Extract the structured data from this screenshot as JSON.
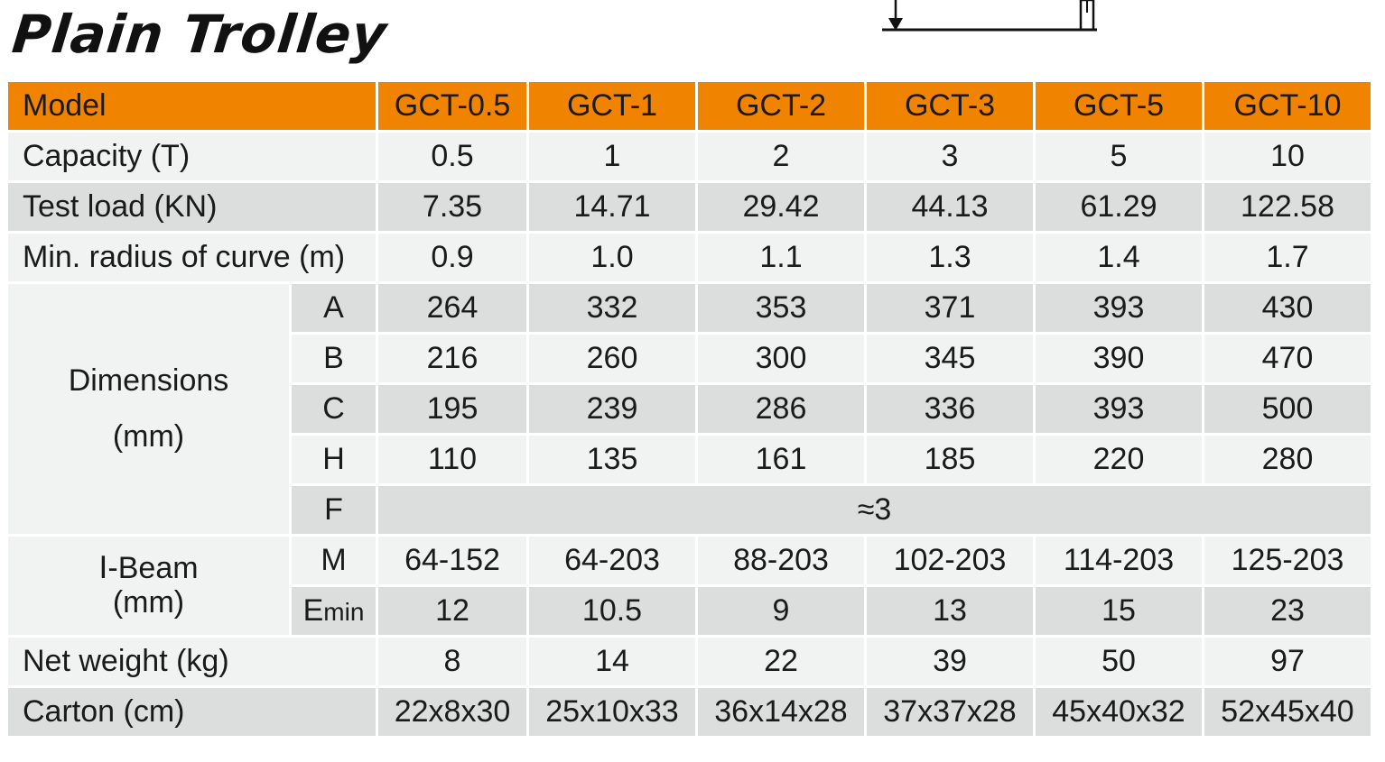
{
  "title": "Plain Trolley",
  "header": {
    "label": "Model",
    "models": [
      "GCT-0.5",
      "GCT-1",
      "GCT-2",
      "GCT-3",
      "GCT-5",
      "GCT-10"
    ]
  },
  "capacity": {
    "label": "Capacity (T)",
    "values": [
      "0.5",
      "1",
      "2",
      "3",
      "5",
      "10"
    ]
  },
  "test_load": {
    "label": "Test load (KN)",
    "values": [
      "7.35",
      "14.71",
      "29.42",
      "44.13",
      "61.29",
      "122.58"
    ]
  },
  "min_radius": {
    "label": "Min. radius of curve (m)",
    "values": [
      "0.9",
      "1.0",
      "1.1",
      "1.3",
      "1.4",
      "1.7"
    ]
  },
  "dimensions": {
    "label_line1": "Dimensions",
    "label_line2": "(mm)",
    "A": {
      "label": "A",
      "values": [
        "264",
        "332",
        "353",
        "371",
        "393",
        "430"
      ]
    },
    "B": {
      "label": "B",
      "values": [
        "216",
        "260",
        "300",
        "345",
        "390",
        "470"
      ]
    },
    "C": {
      "label": "C",
      "values": [
        "195",
        "239",
        "286",
        "336",
        "393",
        "500"
      ]
    },
    "H": {
      "label": "H",
      "values": [
        "110",
        "135",
        "161",
        "185",
        "220",
        "280"
      ]
    },
    "F": {
      "label": "F",
      "value": "≈3"
    }
  },
  "beam": {
    "label_line1": "Ⅰ-Beam",
    "label_line2": "(mm)",
    "M": {
      "label": "M",
      "values": [
        "64-152",
        "64-203",
        "88-203",
        "102-203",
        "114-203",
        "125-203"
      ]
    },
    "Emin": {
      "label_main": "E",
      "label_sub": "min",
      "values": [
        "12",
        "10.5",
        "9",
        "13",
        "15",
        "23"
      ]
    }
  },
  "net_weight": {
    "label": "Net weight (kg)",
    "values": [
      "8",
      "14",
      "22",
      "39",
      "50",
      "97"
    ]
  },
  "carton": {
    "label": "Carton (cm)",
    "values": [
      "22x8x30",
      "25x10x33",
      "36x14x28",
      "37x37x28",
      "45x40x32",
      "52x45x40"
    ]
  },
  "colors": {
    "header": "#f08300",
    "row_light": "#f1f2f2",
    "row_dark": "#dcdddd"
  }
}
